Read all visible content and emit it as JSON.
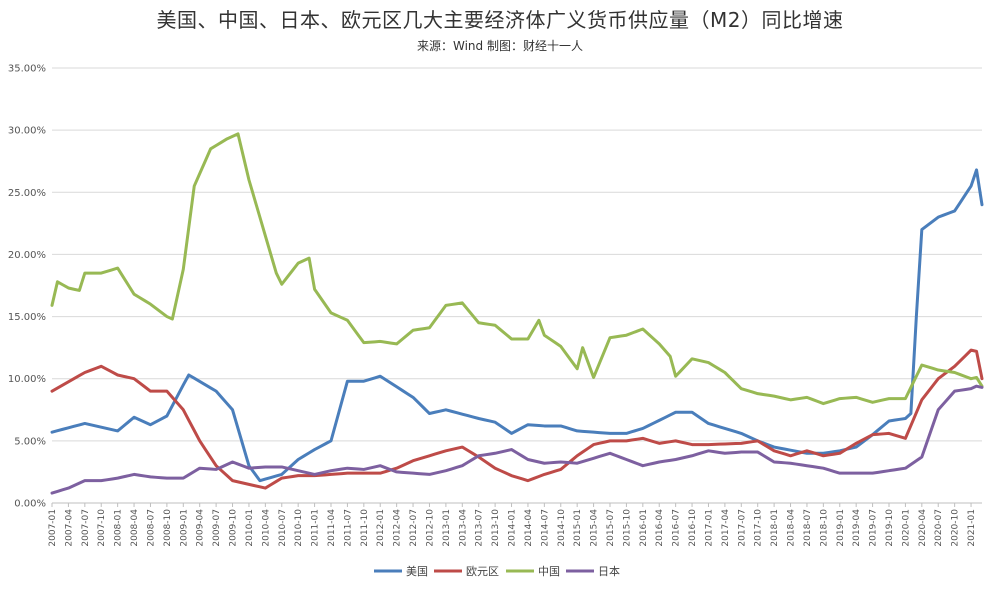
{
  "chart_data": {
    "type": "line",
    "title": "美国、中国、日本、欧元区几大主要经济体广义货币供应量（M2）同比增速",
    "subtitle": "来源：Wind 制图：财经十一人",
    "y_ticks": [
      "0.00%",
      "5.00%",
      "10.00%",
      "15.00%",
      "20.00%",
      "25.00%",
      "30.00%",
      "35.00%"
    ],
    "ylim": [
      0,
      35
    ],
    "x_start": "2007-01",
    "x_ticks": [
      "2007-01",
      "2007-04",
      "2007-07",
      "2007-10",
      "2008-01",
      "2008-04",
      "2008-07",
      "2008-10",
      "2009-01",
      "2009-04",
      "2009-07",
      "2009-10",
      "2010-01",
      "2010-04",
      "2010-07",
      "2010-10",
      "2011-01",
      "2011-04",
      "2011-07",
      "2011-10",
      "2012-01",
      "2012-04",
      "2012-07",
      "2012-10",
      "2013-01",
      "2013-04",
      "2013-07",
      "2013-10",
      "2014-01",
      "2014-04",
      "2014-07",
      "2014-10",
      "2015-01",
      "2015-04",
      "2015-07",
      "2015-10",
      "2016-01",
      "2016-04",
      "2016-07",
      "2016-10",
      "2017-01",
      "2017-04",
      "2017-07",
      "2017-10",
      "2018-01",
      "2018-04",
      "2018-07",
      "2018-10",
      "2019-01",
      "2019-04",
      "2019-07",
      "2019-10",
      "2020-01",
      "2020-04",
      "2020-07",
      "2020-10",
      "2021-01"
    ],
    "legend_position": "bottom",
    "series": [
      {
        "name": "美国",
        "color": "#4a7ebb",
        "anchors": [
          [
            "2007-01",
            5.7
          ],
          [
            "2007-07",
            6.4
          ],
          [
            "2008-01",
            5.8
          ],
          [
            "2008-04",
            6.9
          ],
          [
            "2008-07",
            6.3
          ],
          [
            "2008-10",
            7.0
          ],
          [
            "2009-01",
            9.5
          ],
          [
            "2009-02",
            10.3
          ],
          [
            "2009-07",
            9.0
          ],
          [
            "2009-10",
            7.5
          ],
          [
            "2010-01",
            3.0
          ],
          [
            "2010-03",
            1.8
          ],
          [
            "2010-07",
            2.3
          ],
          [
            "2010-10",
            3.5
          ],
          [
            "2011-01",
            4.3
          ],
          [
            "2011-04",
            5.0
          ],
          [
            "2011-07",
            9.8
          ],
          [
            "2011-10",
            9.8
          ],
          [
            "2012-01",
            10.2
          ],
          [
            "2012-07",
            8.5
          ],
          [
            "2012-10",
            7.2
          ],
          [
            "2013-01",
            7.5
          ],
          [
            "2013-07",
            6.8
          ],
          [
            "2013-10",
            6.5
          ],
          [
            "2014-01",
            5.6
          ],
          [
            "2014-04",
            6.3
          ],
          [
            "2014-07",
            6.2
          ],
          [
            "2014-10",
            6.2
          ],
          [
            "2015-01",
            5.8
          ],
          [
            "2015-07",
            5.6
          ],
          [
            "2015-10",
            5.6
          ],
          [
            "2016-01",
            6.0
          ],
          [
            "2016-07",
            7.3
          ],
          [
            "2016-10",
            7.3
          ],
          [
            "2017-01",
            6.4
          ],
          [
            "2017-07",
            5.6
          ],
          [
            "2017-10",
            5.0
          ],
          [
            "2018-01",
            4.5
          ],
          [
            "2018-07",
            4.0
          ],
          [
            "2018-10",
            4.0
          ],
          [
            "2019-01",
            4.2
          ],
          [
            "2019-04",
            4.5
          ],
          [
            "2019-07",
            5.5
          ],
          [
            "2019-10",
            6.6
          ],
          [
            "2020-01",
            6.8
          ],
          [
            "2020-02",
            7.2
          ],
          [
            "2020-03",
            15.0
          ],
          [
            "2020-04",
            22.0
          ],
          [
            "2020-07",
            23.0
          ],
          [
            "2020-10",
            23.5
          ],
          [
            "2021-01",
            25.5
          ],
          [
            "2021-02",
            26.8
          ],
          [
            "2021-03",
            24.0
          ]
        ]
      },
      {
        "name": "欧元区",
        "color": "#be4b48",
        "anchors": [
          [
            "2007-01",
            9.0
          ],
          [
            "2007-07",
            10.5
          ],
          [
            "2007-10",
            11.0
          ],
          [
            "2008-01",
            10.3
          ],
          [
            "2008-04",
            10.0
          ],
          [
            "2008-07",
            9.0
          ],
          [
            "2008-10",
            9.0
          ],
          [
            "2009-01",
            7.5
          ],
          [
            "2009-04",
            5.0
          ],
          [
            "2009-07",
            3.0
          ],
          [
            "2009-10",
            1.8
          ],
          [
            "2010-01",
            1.5
          ],
          [
            "2010-04",
            1.2
          ],
          [
            "2010-07",
            2.0
          ],
          [
            "2010-10",
            2.2
          ],
          [
            "2011-01",
            2.2
          ],
          [
            "2011-07",
            2.4
          ],
          [
            "2011-10",
            2.4
          ],
          [
            "2012-01",
            2.4
          ],
          [
            "2012-04",
            2.8
          ],
          [
            "2012-07",
            3.4
          ],
          [
            "2012-10",
            3.8
          ],
          [
            "2013-01",
            4.2
          ],
          [
            "2013-04",
            4.5
          ],
          [
            "2013-07",
            3.7
          ],
          [
            "2013-10",
            2.8
          ],
          [
            "2014-01",
            2.2
          ],
          [
            "2014-04",
            1.8
          ],
          [
            "2014-07",
            2.3
          ],
          [
            "2014-10",
            2.7
          ],
          [
            "2015-01",
            3.8
          ],
          [
            "2015-04",
            4.7
          ],
          [
            "2015-07",
            5.0
          ],
          [
            "2015-10",
            5.0
          ],
          [
            "2016-01",
            5.2
          ],
          [
            "2016-04",
            4.8
          ],
          [
            "2016-07",
            5.0
          ],
          [
            "2016-10",
            4.7
          ],
          [
            "2017-01",
            4.7
          ],
          [
            "2017-07",
            4.8
          ],
          [
            "2017-10",
            5.0
          ],
          [
            "2018-01",
            4.2
          ],
          [
            "2018-04",
            3.8
          ],
          [
            "2018-07",
            4.2
          ],
          [
            "2018-10",
            3.8
          ],
          [
            "2019-01",
            4.0
          ],
          [
            "2019-04",
            4.8
          ],
          [
            "2019-07",
            5.5
          ],
          [
            "2019-10",
            5.6
          ],
          [
            "2020-01",
            5.2
          ],
          [
            "2020-04",
            8.3
          ],
          [
            "2020-07",
            10.0
          ],
          [
            "2020-10",
            11.0
          ],
          [
            "2021-01",
            12.3
          ],
          [
            "2021-02",
            12.2
          ],
          [
            "2021-03",
            10.0
          ]
        ]
      },
      {
        "name": "中国",
        "color": "#98b954",
        "anchors": [
          [
            "2007-01",
            15.9
          ],
          [
            "2007-02",
            17.8
          ],
          [
            "2007-04",
            17.3
          ],
          [
            "2007-06",
            17.1
          ],
          [
            "2007-07",
            18.5
          ],
          [
            "2007-10",
            18.5
          ],
          [
            "2008-01",
            18.9
          ],
          [
            "2008-04",
            16.8
          ],
          [
            "2008-07",
            16.0
          ],
          [
            "2008-10",
            15.0
          ],
          [
            "2008-11",
            14.8
          ],
          [
            "2009-01",
            18.8
          ],
          [
            "2009-03",
            25.5
          ],
          [
            "2009-06",
            28.5
          ],
          [
            "2009-09",
            29.3
          ],
          [
            "2009-11",
            29.7
          ],
          [
            "2010-01",
            26.0
          ],
          [
            "2010-04",
            21.5
          ],
          [
            "2010-06",
            18.5
          ],
          [
            "2010-07",
            17.6
          ],
          [
            "2010-10",
            19.3
          ],
          [
            "2010-12",
            19.7
          ],
          [
            "2011-01",
            17.2
          ],
          [
            "2011-04",
            15.3
          ],
          [
            "2011-07",
            14.7
          ],
          [
            "2011-10",
            12.9
          ],
          [
            "2012-01",
            13.0
          ],
          [
            "2012-04",
            12.8
          ],
          [
            "2012-07",
            13.9
          ],
          [
            "2012-10",
            14.1
          ],
          [
            "2013-01",
            15.9
          ],
          [
            "2013-04",
            16.1
          ],
          [
            "2013-07",
            14.5
          ],
          [
            "2013-10",
            14.3
          ],
          [
            "2014-01",
            13.2
          ],
          [
            "2014-04",
            13.2
          ],
          [
            "2014-06",
            14.7
          ],
          [
            "2014-07",
            13.5
          ],
          [
            "2014-10",
            12.6
          ],
          [
            "2015-01",
            10.8
          ],
          [
            "2015-02",
            12.5
          ],
          [
            "2015-04",
            10.1
          ],
          [
            "2015-07",
            13.3
          ],
          [
            "2015-10",
            13.5
          ],
          [
            "2016-01",
            14.0
          ],
          [
            "2016-04",
            12.8
          ],
          [
            "2016-06",
            11.8
          ],
          [
            "2016-07",
            10.2
          ],
          [
            "2016-10",
            11.6
          ],
          [
            "2017-01",
            11.3
          ],
          [
            "2017-04",
            10.5
          ],
          [
            "2017-07",
            9.2
          ],
          [
            "2017-10",
            8.8
          ],
          [
            "2018-01",
            8.6
          ],
          [
            "2018-04",
            8.3
          ],
          [
            "2018-07",
            8.5
          ],
          [
            "2018-10",
            8.0
          ],
          [
            "2019-01",
            8.4
          ],
          [
            "2019-04",
            8.5
          ],
          [
            "2019-07",
            8.1
          ],
          [
            "2019-10",
            8.4
          ],
          [
            "2020-01",
            8.4
          ],
          [
            "2020-04",
            11.1
          ],
          [
            "2020-07",
            10.7
          ],
          [
            "2020-10",
            10.5
          ],
          [
            "2021-01",
            10.0
          ],
          [
            "2021-02",
            10.1
          ],
          [
            "2021-03",
            9.4
          ]
        ]
      },
      {
        "name": "日本",
        "color": "#7d60a0",
        "anchors": [
          [
            "2007-01",
            0.8
          ],
          [
            "2007-04",
            1.2
          ],
          [
            "2007-07",
            1.8
          ],
          [
            "2007-10",
            1.8
          ],
          [
            "2008-01",
            2.0
          ],
          [
            "2008-04",
            2.3
          ],
          [
            "2008-07",
            2.1
          ],
          [
            "2008-10",
            2.0
          ],
          [
            "2009-01",
            2.0
          ],
          [
            "2009-04",
            2.8
          ],
          [
            "2009-07",
            2.7
          ],
          [
            "2009-10",
            3.3
          ],
          [
            "2010-01",
            2.8
          ],
          [
            "2010-04",
            2.9
          ],
          [
            "2010-07",
            2.9
          ],
          [
            "2010-10",
            2.6
          ],
          [
            "2011-01",
            2.3
          ],
          [
            "2011-04",
            2.6
          ],
          [
            "2011-07",
            2.8
          ],
          [
            "2011-10",
            2.7
          ],
          [
            "2012-01",
            3.0
          ],
          [
            "2012-04",
            2.5
          ],
          [
            "2012-07",
            2.4
          ],
          [
            "2012-10",
            2.3
          ],
          [
            "2013-01",
            2.6
          ],
          [
            "2013-04",
            3.0
          ],
          [
            "2013-07",
            3.8
          ],
          [
            "2013-10",
            4.0
          ],
          [
            "2014-01",
            4.3
          ],
          [
            "2014-04",
            3.5
          ],
          [
            "2014-07",
            3.2
          ],
          [
            "2014-10",
            3.3
          ],
          [
            "2015-01",
            3.2
          ],
          [
            "2015-04",
            3.6
          ],
          [
            "2015-07",
            4.0
          ],
          [
            "2015-10",
            3.5
          ],
          [
            "2016-01",
            3.0
          ],
          [
            "2016-04",
            3.3
          ],
          [
            "2016-07",
            3.5
          ],
          [
            "2016-10",
            3.8
          ],
          [
            "2017-01",
            4.2
          ],
          [
            "2017-04",
            4.0
          ],
          [
            "2017-07",
            4.1
          ],
          [
            "2017-10",
            4.1
          ],
          [
            "2018-01",
            3.3
          ],
          [
            "2018-04",
            3.2
          ],
          [
            "2018-07",
            3.0
          ],
          [
            "2018-10",
            2.8
          ],
          [
            "2019-01",
            2.4
          ],
          [
            "2019-04",
            2.4
          ],
          [
            "2019-07",
            2.4
          ],
          [
            "2019-10",
            2.6
          ],
          [
            "2020-01",
            2.8
          ],
          [
            "2020-04",
            3.7
          ],
          [
            "2020-07",
            7.5
          ],
          [
            "2020-10",
            9.0
          ],
          [
            "2021-01",
            9.2
          ],
          [
            "2021-02",
            9.4
          ],
          [
            "2021-03",
            9.3
          ]
        ]
      }
    ]
  }
}
